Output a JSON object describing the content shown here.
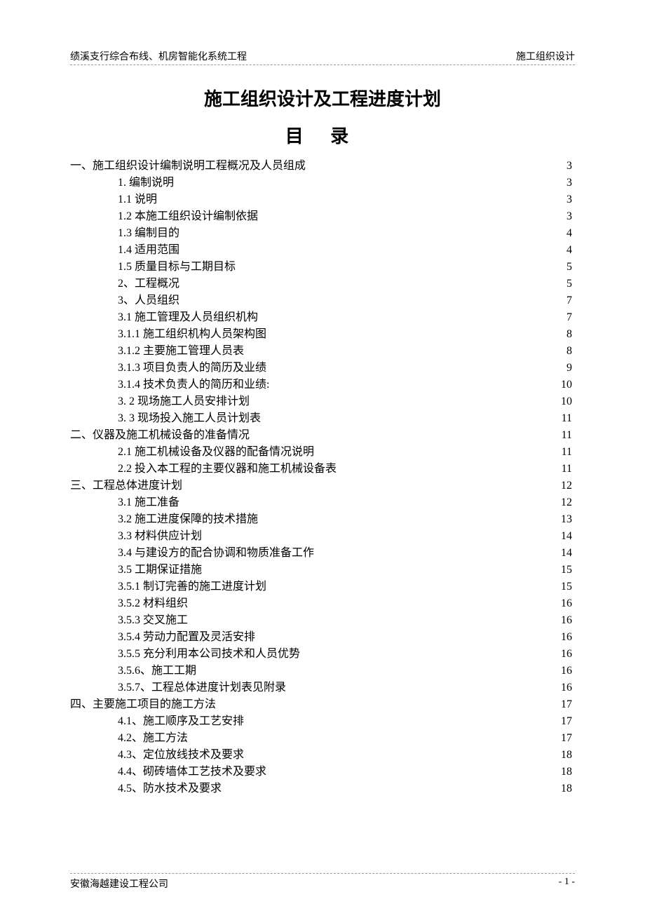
{
  "header": {
    "left": "绩溪支行综合布线、机房智能化系统工程",
    "right": "施工组织设计"
  },
  "title": "施工组织设计及工程进度计划",
  "toc_title": "目 录",
  "toc_entries": [
    {
      "label": "一、施工组织设计编制说明工程概况及人员组成",
      "page": "3",
      "level": 1
    },
    {
      "label": "1. 编制说明",
      "page": "3",
      "level": 2
    },
    {
      "label": "1.1 说明",
      "page": "3",
      "level": 2
    },
    {
      "label": "1.2 本施工组织设计编制依据",
      "page": "3",
      "level": 2
    },
    {
      "label": "1.3 编制目的",
      "page": "4",
      "level": 2
    },
    {
      "label": "1.4 适用范围",
      "page": "4",
      "level": 2
    },
    {
      "label": "1.5 质量目标与工期目标",
      "page": "5",
      "level": 2
    },
    {
      "label": "2、工程概况",
      "page": "5",
      "level": 2
    },
    {
      "label": "3、人员组织",
      "page": "7",
      "level": 2
    },
    {
      "label": "3.1 施工管理及人员组织机构",
      "page": "7",
      "level": 2
    },
    {
      "label": "3.1.1 施工组织机构人员架构图",
      "page": "8",
      "level": 2
    },
    {
      "label": "3.1.2 主要施工管理人员表",
      "page": "8",
      "level": 2
    },
    {
      "label": "3.1.3 项目负责人的简历及业绩",
      "page": "9",
      "level": 2
    },
    {
      "label": "3.1.4 技术负责人的简历和业绩:",
      "page": "10",
      "level": 2
    },
    {
      "label": "3. 2 现场施工人员安排计划",
      "page": "10",
      "level": 2
    },
    {
      "label": "3. 3 现场投入施工人员计划表",
      "page": "11",
      "level": 2
    },
    {
      "label": "二、仪器及施工机械设备的准备情况",
      "page": "11",
      "level": 1
    },
    {
      "label": "2.1 施工机械设备及仪器的配备情况说明",
      "page": "11",
      "level": 2
    },
    {
      "label": "2.2 投入本工程的主要仪器和施工机械设备表",
      "page": "11",
      "level": 2
    },
    {
      "label": "三、工程总体进度计划",
      "page": "12",
      "level": 1
    },
    {
      "label": "3.1 施工准备",
      "page": "12",
      "level": 2
    },
    {
      "label": "3.2 施工进度保障的技术措施",
      "page": "13",
      "level": 2
    },
    {
      "label": "3.3 材料供应计划",
      "page": "14",
      "level": 2
    },
    {
      "label": "3.4 与建设方的配合协调和物质准备工作",
      "page": "14",
      "level": 2
    },
    {
      "label": "3.5 工期保证措施",
      "page": "15",
      "level": 2
    },
    {
      "label": "3.5.1 制订完善的施工进度计划",
      "page": "15",
      "level": 2
    },
    {
      "label": "3.5.2 材料组织",
      "page": "16",
      "level": 2
    },
    {
      "label": "3.5.3 交叉施工",
      "page": "16",
      "level": 2
    },
    {
      "label": "3.5.4 劳动力配置及灵活安排",
      "page": "16",
      "level": 2
    },
    {
      "label": "3.5.5 充分利用本公司技术和人员优势",
      "page": "16",
      "level": 2
    },
    {
      "label": "3.5.6、施工工期",
      "page": "16",
      "level": 2
    },
    {
      "label": "3.5.7、工程总体进度计划表见附录",
      "page": "16",
      "level": 2
    },
    {
      "label": "四、主要施工项目的施工方法",
      "page": "17",
      "level": 1
    },
    {
      "label": "4.1、施工顺序及工艺安排",
      "page": "17",
      "level": 2
    },
    {
      "label": "4.2、施工方法",
      "page": "17",
      "level": 2
    },
    {
      "label": "4.3、定位放线技术及要求",
      "page": "18",
      "level": 2
    },
    {
      "label": "4.4、砌砖墙体工艺技术及要求",
      "page": "18",
      "level": 2
    },
    {
      "label": "4.5、防水技术及要求",
      "page": "18",
      "level": 2
    }
  ],
  "footer": {
    "left": "安徽海越建设工程公司",
    "right": "- 1 -"
  },
  "colors": {
    "text": "#000000",
    "divider": "#999999",
    "background": "#ffffff"
  },
  "typography": {
    "header_fontsize": 14,
    "title_fontsize": 26,
    "toc_fontsize": 16,
    "footer_fontsize": 14,
    "font_family": "SimSun"
  }
}
